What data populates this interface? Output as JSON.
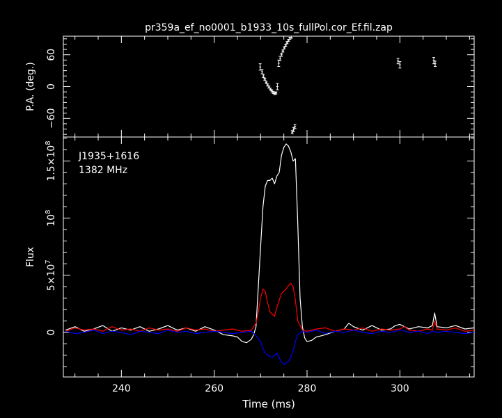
{
  "figure": {
    "title": "pr359a_ef_no0001_b1933_10s_fullPol.cor_Ef.fil.zap",
    "background": "#000000",
    "foreground": "#ffffff"
  },
  "chart_data": [
    {
      "type": "scatter",
      "panel": "position-angle",
      "title": "pr359a_ef_no0001_b1933_10s_fullPol.cor_Ef.fil.zap",
      "xlabel": "",
      "ylabel": "P.A. (deg.)",
      "xlim": [
        227.5,
        316
      ],
      "ylim": [
        -95,
        95
      ],
      "yticks": [
        -60,
        0,
        60
      ],
      "ytick_labels": [
        "−60",
        "0",
        "60"
      ],
      "grid": false,
      "series": [
        {
          "color": "#ffffff",
          "points": [
            {
              "x": 269.9,
              "y": 37,
              "err": 6
            },
            {
              "x": 270.3,
              "y": 28,
              "err": 4
            },
            {
              "x": 270.6,
              "y": 20,
              "err": 3
            },
            {
              "x": 270.9,
              "y": 14,
              "err": 2
            },
            {
              "x": 271.2,
              "y": 8,
              "err": 2
            },
            {
              "x": 271.5,
              "y": 3,
              "err": 2
            },
            {
              "x": 271.8,
              "y": -1,
              "err": 2
            },
            {
              "x": 272.1,
              "y": -5,
              "err": 2
            },
            {
              "x": 272.4,
              "y": -8,
              "err": 2
            },
            {
              "x": 272.7,
              "y": -11,
              "err": 2
            },
            {
              "x": 273.0,
              "y": -13,
              "err": 2
            },
            {
              "x": 273.3,
              "y": -12,
              "err": 2
            },
            {
              "x": 273.6,
              "y": 0,
              "err": 6
            },
            {
              "x": 273.9,
              "y": 44,
              "err": 6
            },
            {
              "x": 274.2,
              "y": 53,
              "err": 4
            },
            {
              "x": 274.5,
              "y": 60,
              "err": 3
            },
            {
              "x": 274.8,
              "y": 67,
              "err": 2
            },
            {
              "x": 275.1,
              "y": 73,
              "err": 2
            },
            {
              "x": 275.4,
              "y": 78,
              "err": 2
            },
            {
              "x": 275.7,
              "y": 83,
              "err": 2
            },
            {
              "x": 276.0,
              "y": 87,
              "err": 2
            },
            {
              "x": 276.3,
              "y": 91,
              "err": 2
            },
            {
              "x": 276.6,
              "y": 93,
              "err": 2
            },
            {
              "x": 276.8,
              "y": -86,
              "err": 3
            },
            {
              "x": 277.1,
              "y": -81,
              "err": 4
            },
            {
              "x": 277.4,
              "y": -75,
              "err": 4
            },
            {
              "x": 299.6,
              "y": 48,
              "err": 5
            },
            {
              "x": 300.0,
              "y": 41,
              "err": 6
            },
            {
              "x": 307.3,
              "y": 49,
              "err": 6
            },
            {
              "x": 307.6,
              "y": 43,
              "err": 5
            }
          ]
        }
      ]
    },
    {
      "type": "line",
      "panel": "profile",
      "title": "",
      "xlabel": "Time (ms)",
      "ylabel": "Flux",
      "annotations": [
        "J1935+1616",
        "1382 MHz"
      ],
      "xlim": [
        227.5,
        316
      ],
      "ylim": [
        -39000000,
        171000000
      ],
      "xticks": [
        240,
        260,
        280,
        300
      ],
      "yticks": [
        0,
        50000000,
        100000000,
        150000000
      ],
      "ytick_base": "5",
      "ytick_labels": [
        {
          "base": "0",
          "sup": ""
        },
        {
          "base": "5×10",
          "sup": "7"
        },
        {
          "base": "10",
          "sup": "8"
        },
        {
          "base": "1.5×10",
          "sup": "8"
        }
      ],
      "grid": false,
      "series": [
        {
          "color": "#ffffff",
          "x": [
            228,
            230,
            232,
            234,
            236,
            238,
            240,
            242,
            244,
            246,
            248,
            250,
            252,
            254,
            256,
            258,
            260,
            262,
            264,
            265,
            266,
            267,
            268,
            268.5,
            269,
            269.5,
            270,
            270.5,
            271,
            271.5,
            272,
            272.5,
            273,
            273.5,
            274,
            274.5,
            275,
            275.5,
            276,
            276.5,
            277,
            277.5,
            278,
            278.5,
            279,
            279.5,
            280,
            281,
            282,
            283,
            284,
            286,
            288,
            289,
            290,
            292,
            294,
            296,
            298,
            299,
            300,
            301,
            302,
            304,
            306,
            307,
            307.5,
            308,
            310,
            312,
            314,
            316
          ],
          "y": [
            2000000,
            5000000,
            1000000,
            3000000,
            6000000,
            1000000,
            4000000,
            2000000,
            5000000,
            1000000,
            3000000,
            6000000,
            2000000,
            4000000,
            1000000,
            5000000,
            2000000,
            -2000000,
            -3000000,
            -4000000,
            -8000000,
            -9000000,
            -6000000,
            -2000000,
            5000000,
            40000000,
            75000000,
            110000000,
            128000000,
            133000000,
            133000000,
            135000000,
            130000000,
            137000000,
            140000000,
            155000000,
            162000000,
            165000000,
            163000000,
            158000000,
            150000000,
            152000000,
            95000000,
            30000000,
            5000000,
            -5000000,
            -8000000,
            -7000000,
            -4000000,
            -3000000,
            -2000000,
            1000000,
            3000000,
            8000000,
            5000000,
            2000000,
            6000000,
            2000000,
            3000000,
            6000000,
            7000000,
            5000000,
            3000000,
            5000000,
            4000000,
            6000000,
            17000000,
            5000000,
            4000000,
            6000000,
            3000000,
            4000000
          ]
        },
        {
          "color": "#ff0000",
          "x": [
            228,
            230,
            232,
            234,
            236,
            238,
            240,
            242,
            244,
            246,
            248,
            250,
            252,
            254,
            256,
            258,
            260,
            262,
            264,
            266,
            268,
            269,
            269.5,
            270,
            270.5,
            271,
            271.5,
            272,
            272.5,
            273,
            273.5,
            274,
            274.5,
            275,
            275.5,
            276,
            276.5,
            277,
            277.5,
            278,
            279,
            280,
            282,
            284,
            286,
            288,
            290,
            292,
            294,
            296,
            298,
            300,
            301,
            302,
            304,
            306,
            307,
            307.5,
            308,
            310,
            312,
            314,
            316
          ],
          "y": [
            1000000,
            4000000,
            2000000,
            3000000,
            1000000,
            5000000,
            2000000,
            3000000,
            1000000,
            4000000,
            2000000,
            3000000,
            1000000,
            4000000,
            2000000,
            3000000,
            1000000,
            2000000,
            3000000,
            1000000,
            2000000,
            8000000,
            18000000,
            30000000,
            38000000,
            36000000,
            26000000,
            18000000,
            16000000,
            14000000,
            22000000,
            28000000,
            34000000,
            36000000,
            38000000,
            41000000,
            43000000,
            40000000,
            28000000,
            10000000,
            2000000,
            1000000,
            3000000,
            4000000,
            1000000,
            3000000,
            2000000,
            4000000,
            1000000,
            3000000,
            2000000,
            3000000,
            5000000,
            2000000,
            1000000,
            3000000,
            2000000,
            10000000,
            3000000,
            2000000,
            4000000,
            1000000,
            2000000
          ]
        },
        {
          "color": "#0000ff",
          "x": [
            228,
            230,
            232,
            234,
            236,
            238,
            240,
            242,
            244,
            246,
            248,
            250,
            252,
            254,
            256,
            258,
            260,
            262,
            264,
            266,
            268,
            269,
            270,
            270.5,
            271,
            271.5,
            272,
            272.5,
            273,
            273.5,
            274,
            274.5,
            275,
            275.5,
            276,
            276.5,
            277,
            277.5,
            278,
            279,
            280,
            282,
            284,
            286,
            288,
            290,
            292,
            294,
            296,
            298,
            300,
            302,
            304,
            306,
            307,
            308,
            310,
            312,
            314,
            316
          ],
          "y": [
            1000000,
            -1000000,
            0,
            2000000,
            -1000000,
            1000000,
            0,
            -2000000,
            1000000,
            0,
            -1000000,
            2000000,
            0,
            1000000,
            -1000000,
            0,
            1000000,
            0,
            -1000000,
            0,
            1000000,
            -3000000,
            -8000000,
            -14000000,
            -18000000,
            -20000000,
            -21000000,
            -22000000,
            -20000000,
            -18000000,
            -22000000,
            -26000000,
            -28000000,
            -27000000,
            -25000000,
            -22000000,
            -16000000,
            -8000000,
            -2000000,
            1000000,
            0,
            2000000,
            -1000000,
            1000000,
            0,
            2000000,
            0,
            -1000000,
            1000000,
            0,
            2000000,
            0,
            1000000,
            -1000000,
            1000000,
            0,
            1000000,
            0,
            -1000000,
            0
          ]
        }
      ]
    }
  ]
}
